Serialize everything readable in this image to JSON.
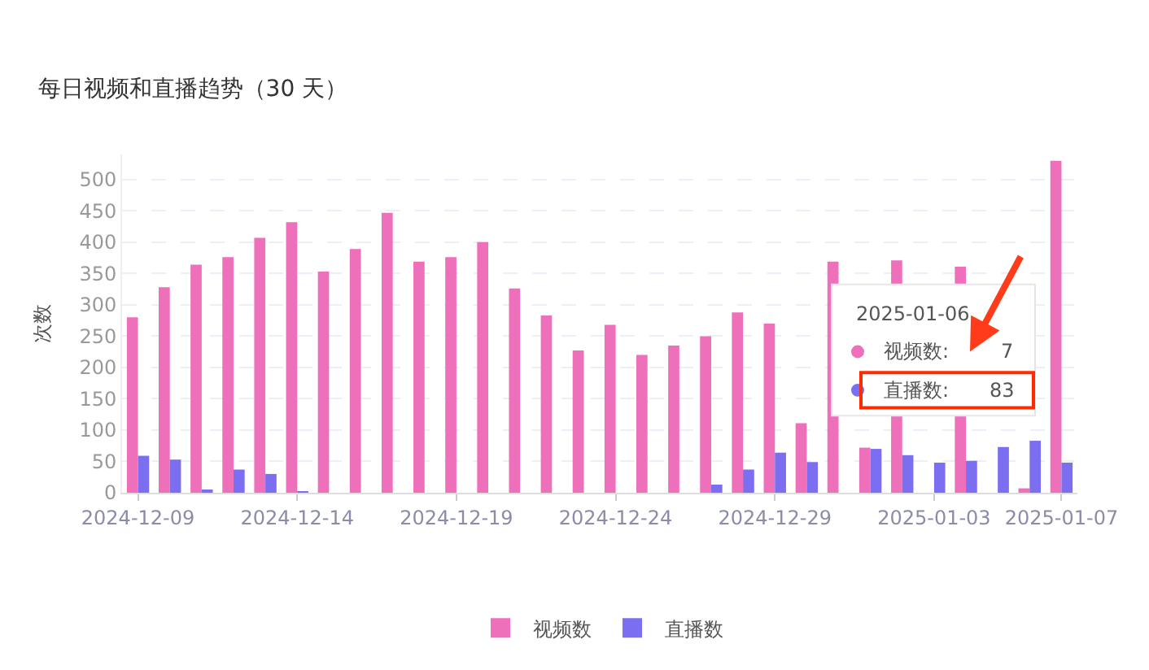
{
  "chart_data": {
    "type": "bar",
    "title": "每日视频和直播趋势（30 天）",
    "ylabel": "次数",
    "categories": [
      "2024-12-09",
      null,
      null,
      null,
      null,
      "2024-12-14",
      null,
      null,
      null,
      null,
      "2024-12-19",
      null,
      null,
      null,
      null,
      "2024-12-24",
      null,
      null,
      null,
      null,
      "2024-12-29",
      null,
      null,
      null,
      null,
      "2025-01-03",
      null,
      null,
      null,
      "2025-01-07"
    ],
    "series": [
      {
        "name": "视频数",
        "color": "#ee6fba",
        "values": [
          280,
          328,
          364,
          376,
          407,
          432,
          353,
          389,
          447,
          369,
          376,
          400,
          326,
          283,
          227,
          268,
          220,
          235,
          250,
          288,
          270,
          111,
          369,
          72,
          371,
          null,
          361,
          null,
          7,
          530
        ]
      },
      {
        "name": "直播数",
        "color": "#7b6ef0",
        "values": [
          59,
          53,
          4,
          37,
          30,
          1,
          0,
          0,
          0,
          0,
          0,
          0,
          0,
          0,
          0,
          0,
          0,
          0,
          13,
          37,
          64,
          49,
          0,
          70,
          60,
          48,
          51,
          73,
          83,
          48
        ]
      }
    ],
    "ylim": [
      0,
      540
    ],
    "yticks": [
      0,
      50,
      100,
      150,
      200,
      250,
      300,
      350,
      400,
      450,
      500
    ],
    "grid": "y",
    "legend": "bottom",
    "annotations": [
      "2025-01-06",
      "视频数:",
      "7",
      "直播数:",
      "83"
    ]
  }
}
